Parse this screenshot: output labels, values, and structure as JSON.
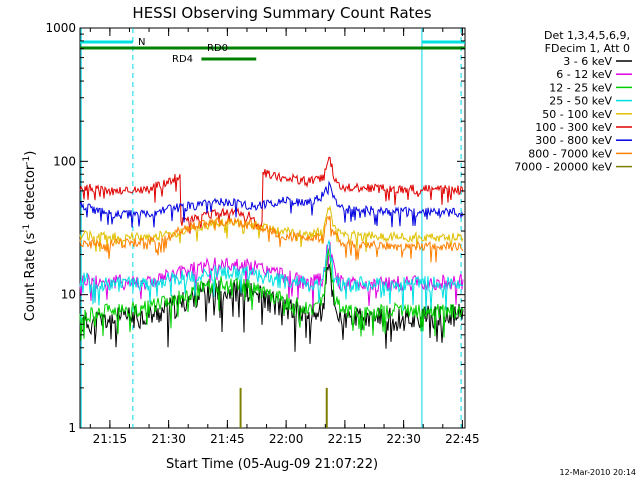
{
  "chart_data": {
    "type": "line",
    "title": "HESSI Observing Summary Count Rates",
    "xlabel": "Start Time (05-Aug-09 21:07:22)",
    "ylabel_main": "Count Rate (s",
    "ylabel_sup1": "-1",
    "ylabel_mid": " detector",
    "ylabel_sup2": "-1",
    "ylabel_end": ")",
    "yscale": "log",
    "ylim": [
      1,
      1000
    ],
    "xlim_minutes": [
      0,
      98.3
    ],
    "y_ticks": [
      "1",
      "10",
      "100",
      "1000"
    ],
    "x_ticks": [
      {
        "label": "21:15",
        "min": 7.63
      },
      {
        "label": "21:30",
        "min": 22.63
      },
      {
        "label": "21:45",
        "min": 37.63
      },
      {
        "label": "22:00",
        "min": 52.63
      },
      {
        "label": "22:15",
        "min": 67.63
      },
      {
        "label": "22:30",
        "min": 82.63
      },
      {
        "label": "22:45",
        "min": 97.63
      }
    ],
    "legend_header": [
      "Det 1,3,4,5,6,9,",
      "FDecim 1, Att 0"
    ],
    "series": [
      {
        "name": "3 - 6 keV",
        "color": "#000000",
        "points": [
          [
            0,
            6
          ],
          [
            8,
            6.5
          ],
          [
            18,
            7
          ],
          [
            24,
            8
          ],
          [
            30,
            10
          ],
          [
            38,
            11
          ],
          [
            45,
            10
          ],
          [
            52,
            8
          ],
          [
            58,
            7
          ],
          [
            62,
            7.5
          ],
          [
            63.5,
            17
          ],
          [
            65,
            8
          ],
          [
            67,
            6.5
          ],
          [
            80,
            6.5
          ],
          [
            98,
            7
          ]
        ]
      },
      {
        "name": "6 - 12 keV",
        "color": "#e000e0",
        "points": [
          [
            0,
            13
          ],
          [
            8,
            12.5
          ],
          [
            18,
            12.5
          ],
          [
            24,
            14
          ],
          [
            30,
            16
          ],
          [
            38,
            17
          ],
          [
            45,
            16
          ],
          [
            52,
            14
          ],
          [
            58,
            12
          ],
          [
            62,
            13
          ],
          [
            63.5,
            27
          ],
          [
            65,
            14
          ],
          [
            67,
            12
          ],
          [
            80,
            12
          ],
          [
            98,
            12.5
          ]
        ]
      },
      {
        "name": "12 - 25 keV",
        "color": "#00d000",
        "points": [
          [
            0,
            7
          ],
          [
            8,
            7.5
          ],
          [
            18,
            8
          ],
          [
            24,
            9
          ],
          [
            30,
            11
          ],
          [
            38,
            12.5
          ],
          [
            45,
            11
          ],
          [
            52,
            9
          ],
          [
            58,
            8
          ],
          [
            62,
            8.5
          ],
          [
            63.5,
            22
          ],
          [
            65,
            9
          ],
          [
            67,
            7.5
          ],
          [
            80,
            7.5
          ],
          [
            98,
            7.5
          ]
        ]
      },
      {
        "name": "25 - 50 keV",
        "color": "#00e0e0",
        "points": [
          [
            0,
            13
          ],
          [
            8,
            12
          ],
          [
            18,
            12
          ],
          [
            24,
            13
          ],
          [
            30,
            14
          ],
          [
            38,
            15
          ],
          [
            45,
            14
          ],
          [
            52,
            12.5
          ],
          [
            58,
            12
          ],
          [
            62,
            12.5
          ],
          [
            63.5,
            25
          ],
          [
            65,
            13
          ],
          [
            67,
            12
          ],
          [
            80,
            12
          ],
          [
            98,
            12
          ]
        ]
      },
      {
        "name": "50 - 100 keV",
        "color": "#e0c000",
        "points": [
          [
            0,
            28
          ],
          [
            8,
            27
          ],
          [
            18,
            27
          ],
          [
            24,
            29
          ],
          [
            30,
            32
          ],
          [
            38,
            35
          ],
          [
            45,
            33
          ],
          [
            52,
            30
          ],
          [
            58,
            28
          ],
          [
            62,
            30
          ],
          [
            63.5,
            48
          ],
          [
            65,
            31
          ],
          [
            67,
            28
          ],
          [
            80,
            27
          ],
          [
            98,
            27
          ]
        ]
      },
      {
        "name": "100 - 300 keV",
        "color": "#e00000",
        "points": [
          [
            0,
            65
          ],
          [
            8,
            60
          ],
          [
            18,
            62
          ],
          [
            25.6,
            78
          ],
          [
            25.8,
            35
          ],
          [
            30,
            38
          ],
          [
            38,
            42
          ],
          [
            43,
            40
          ],
          [
            45,
            35
          ],
          [
            46.5,
            33
          ],
          [
            46.7,
            82
          ],
          [
            52,
            76
          ],
          [
            58,
            70
          ],
          [
            62,
            75
          ],
          [
            63.5,
            112
          ],
          [
            65,
            74
          ],
          [
            67,
            64
          ],
          [
            80,
            62
          ],
          [
            98,
            61
          ]
        ]
      },
      {
        "name": "300 - 800 keV",
        "color": "#0000e0",
        "points": [
          [
            0,
            47
          ],
          [
            8,
            40
          ],
          [
            18,
            40
          ],
          [
            22,
            44
          ],
          [
            25,
            45
          ],
          [
            30,
            47
          ],
          [
            38,
            50
          ],
          [
            45,
            46
          ],
          [
            52,
            51
          ],
          [
            58,
            48
          ],
          [
            62,
            55
          ],
          [
            63.5,
            68
          ],
          [
            65,
            52
          ],
          [
            67,
            44
          ],
          [
            80,
            42
          ],
          [
            98,
            41
          ]
        ]
      },
      {
        "name": "800 - 7000 keV",
        "color": "#ff8000",
        "points": [
          [
            0,
            24
          ],
          [
            8,
            24
          ],
          [
            18,
            25
          ],
          [
            22,
            26
          ],
          [
            25,
            30
          ],
          [
            30,
            33
          ],
          [
            38,
            36
          ],
          [
            45,
            33
          ],
          [
            52,
            28
          ],
          [
            58,
            26
          ],
          [
            62,
            27
          ],
          [
            63.5,
            40
          ],
          [
            65,
            28
          ],
          [
            67,
            24
          ],
          [
            80,
            23
          ],
          [
            98,
            23
          ]
        ]
      },
      {
        "name": "7000 - 20000 keV",
        "color": "#808000",
        "spikes": [
          [
            41.0,
            2.0
          ],
          [
            63.0,
            2.0
          ]
        ]
      }
    ],
    "obs_bars": {
      "flag_top": {
        "label": "N",
        "color": "#00e0e0",
        "segments": [
          [
            0,
            13.5
          ],
          [
            87.3,
            98.3
          ]
        ]
      },
      "flag_rd0": {
        "label": "RD0",
        "color": "#008000",
        "segments": [
          [
            0,
            98.3
          ]
        ]
      },
      "flag_rd4": {
        "label": "RD4",
        "color": "#008000",
        "segments": [
          [
            31,
            45
          ]
        ]
      }
    },
    "vertical_lines": [
      {
        "min": 0.3,
        "style": "solid"
      },
      {
        "min": 13.5,
        "style": "dashed"
      },
      {
        "min": 87.3,
        "style": "solid"
      },
      {
        "min": 97.3,
        "style": "dashed"
      }
    ]
  },
  "footer": {
    "timestamp": "12-Mar-2010 20:14"
  }
}
